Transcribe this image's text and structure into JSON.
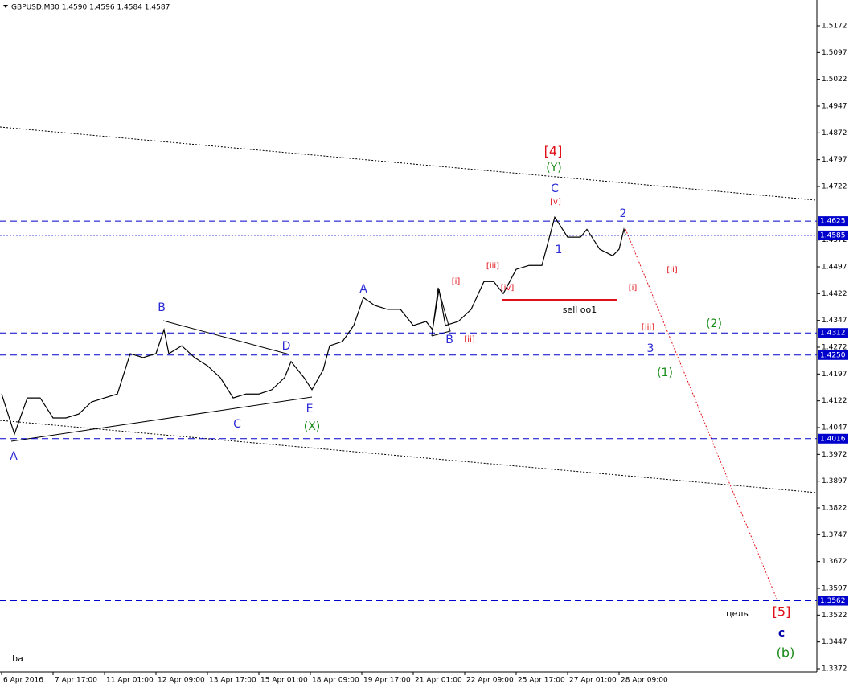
{
  "chart_data": {
    "type": "line",
    "title": "GBPUSD,M30  1.4590 1.4596 1.4584 1.4587",
    "color": "#000000",
    "x": [
      0,
      8,
      16,
      24,
      32,
      40,
      48,
      56,
      64,
      72,
      80,
      88,
      96,
      101,
      104,
      112,
      120,
      128,
      136,
      144,
      152,
      160,
      168,
      176,
      180,
      188,
      193,
      200,
      204,
      212,
      219,
      225,
      232,
      240,
      248,
      256,
      264,
      268,
      272,
      276,
      284,
      292,
      300,
      306,
      312,
      320,
      328,
      336,
      344,
      352,
      360,
      364,
      372,
      380,
      384,
      387,
      388
    ],
    "values": [
      1.4141,
      1.4029,
      1.413,
      1.413,
      1.4074,
      1.4074,
      1.4085,
      1.4119,
      1.413,
      1.4141,
      1.4254,
      1.4243,
      1.4254,
      1.4321,
      1.4254,
      1.4276,
      1.4243,
      1.422,
      1.4187,
      1.413,
      1.4141,
      1.4141,
      1.4153,
      1.4187,
      1.4232,
      1.4187,
      1.4153,
      1.4209,
      1.4276,
      1.4288,
      1.4333,
      1.4411,
      1.4389,
      1.4378,
      1.4378,
      1.4333,
      1.4344,
      1.4321,
      1.4434,
      1.4333,
      1.4344,
      1.4378,
      1.4456,
      1.4456,
      1.4422,
      1.449,
      1.4501,
      1.4501,
      1.4636,
      1.458,
      1.458,
      1.4602,
      1.4546,
      1.4528,
      1.4546,
      1.4602,
      1.4587
    ],
    "xlim": [
      0,
      507
    ],
    "xticks": [
      {
        "value": 0,
        "label": "6 Apr 2016"
      },
      {
        "value": 32,
        "label": "7 Apr 17:00"
      },
      {
        "value": 64,
        "label": "11 Apr 01:00"
      },
      {
        "value": 96,
        "label": "12 Apr 09:00"
      },
      {
        "value": 128,
        "label": "13 Apr 17:00"
      },
      {
        "value": 160,
        "label": "15 Apr 01:00"
      },
      {
        "value": 192,
        "label": "18 Apr 09:00"
      },
      {
        "value": 224,
        "label": "19 Apr 17:00"
      },
      {
        "value": 256,
        "label": "21 Apr 01:00"
      },
      {
        "value": 288,
        "label": "22 Apr 09:00"
      },
      {
        "value": 320,
        "label": "25 Apr 17:00"
      },
      {
        "value": 352,
        "label": "27 Apr 01:00"
      },
      {
        "value": 384,
        "label": "28 Apr 09:00"
      }
    ],
    "ylim": [
      1.3363,
      1.5244
    ],
    "yticks": [
      1.5172,
      1.5097,
      1.5022,
      1.4947,
      1.4872,
      1.4797,
      1.4722,
      1.4572,
      1.4497,
      1.4422,
      1.4347,
      1.4272,
      1.4197,
      1.4122,
      1.4047,
      1.3972,
      1.3897,
      1.3822,
      1.3747,
      1.3672,
      1.3597,
      1.3522,
      1.3447,
      1.3372
    ],
    "grid": false,
    "levels": [
      1.4625,
      1.4585,
      1.4312,
      {
        "value": 1.425,
        "label": "1.4250"
      },
      1.4016,
      1.3562
    ],
    "level_color": "#0000cc",
    "annotations": [
      {
        "text": "A",
        "color": "#2b2bd6"
      },
      {
        "text": "B",
        "color": "#2b2bd6"
      },
      {
        "text": "C",
        "color": "#2b2bd6"
      },
      {
        "text": "D",
        "color": "#2b2bd6"
      },
      {
        "text": "E",
        "color": "#2b2bd6"
      },
      {
        "text": "(X)",
        "color": "#178a17"
      },
      {
        "text": "A",
        "color": "#2b2bd6"
      },
      {
        "text": "[i]",
        "color": "#e0101a"
      },
      {
        "text": "B",
        "color": "#2b2bd6"
      },
      {
        "text": "[ii]",
        "color": "#e0101a"
      },
      {
        "text": "[iii]",
        "color": "#e0101a"
      },
      {
        "text": "[iv]",
        "color": "#e0101a"
      },
      {
        "text": "sell oo1",
        "color": "#000000"
      },
      {
        "text": "[v]",
        "color": "#e0101a"
      },
      {
        "text": "C",
        "color": "#2b2bd6"
      },
      {
        "text": "(Y)",
        "color": "#178a17"
      },
      {
        "text": "[4]",
        "color": "#e0101a"
      },
      {
        "text": "1",
        "color": "#2b2bd6"
      },
      {
        "text": "2",
        "color": "#2b2bd6"
      },
      {
        "text": "[i]",
        "color": "#e0101a"
      },
      {
        "text": "[ii]",
        "color": "#e0101a"
      },
      {
        "text": "[iii]",
        "color": "#e0101a"
      },
      {
        "text": "3",
        "color": "#2b2bd6"
      },
      {
        "text": "(2)",
        "color": "#178a17"
      },
      {
        "text": "(1)",
        "color": "#178a17"
      },
      {
        "text": "цель",
        "color": "#000000"
      },
      {
        "text": "[5]",
        "color": "#e0101a"
      },
      {
        "text": "c",
        "color": "#0000aa"
      },
      {
        "text": "(b)",
        "color": "#178a17"
      },
      {
        "text": "ba",
        "color": "#000000"
      }
    ]
  }
}
